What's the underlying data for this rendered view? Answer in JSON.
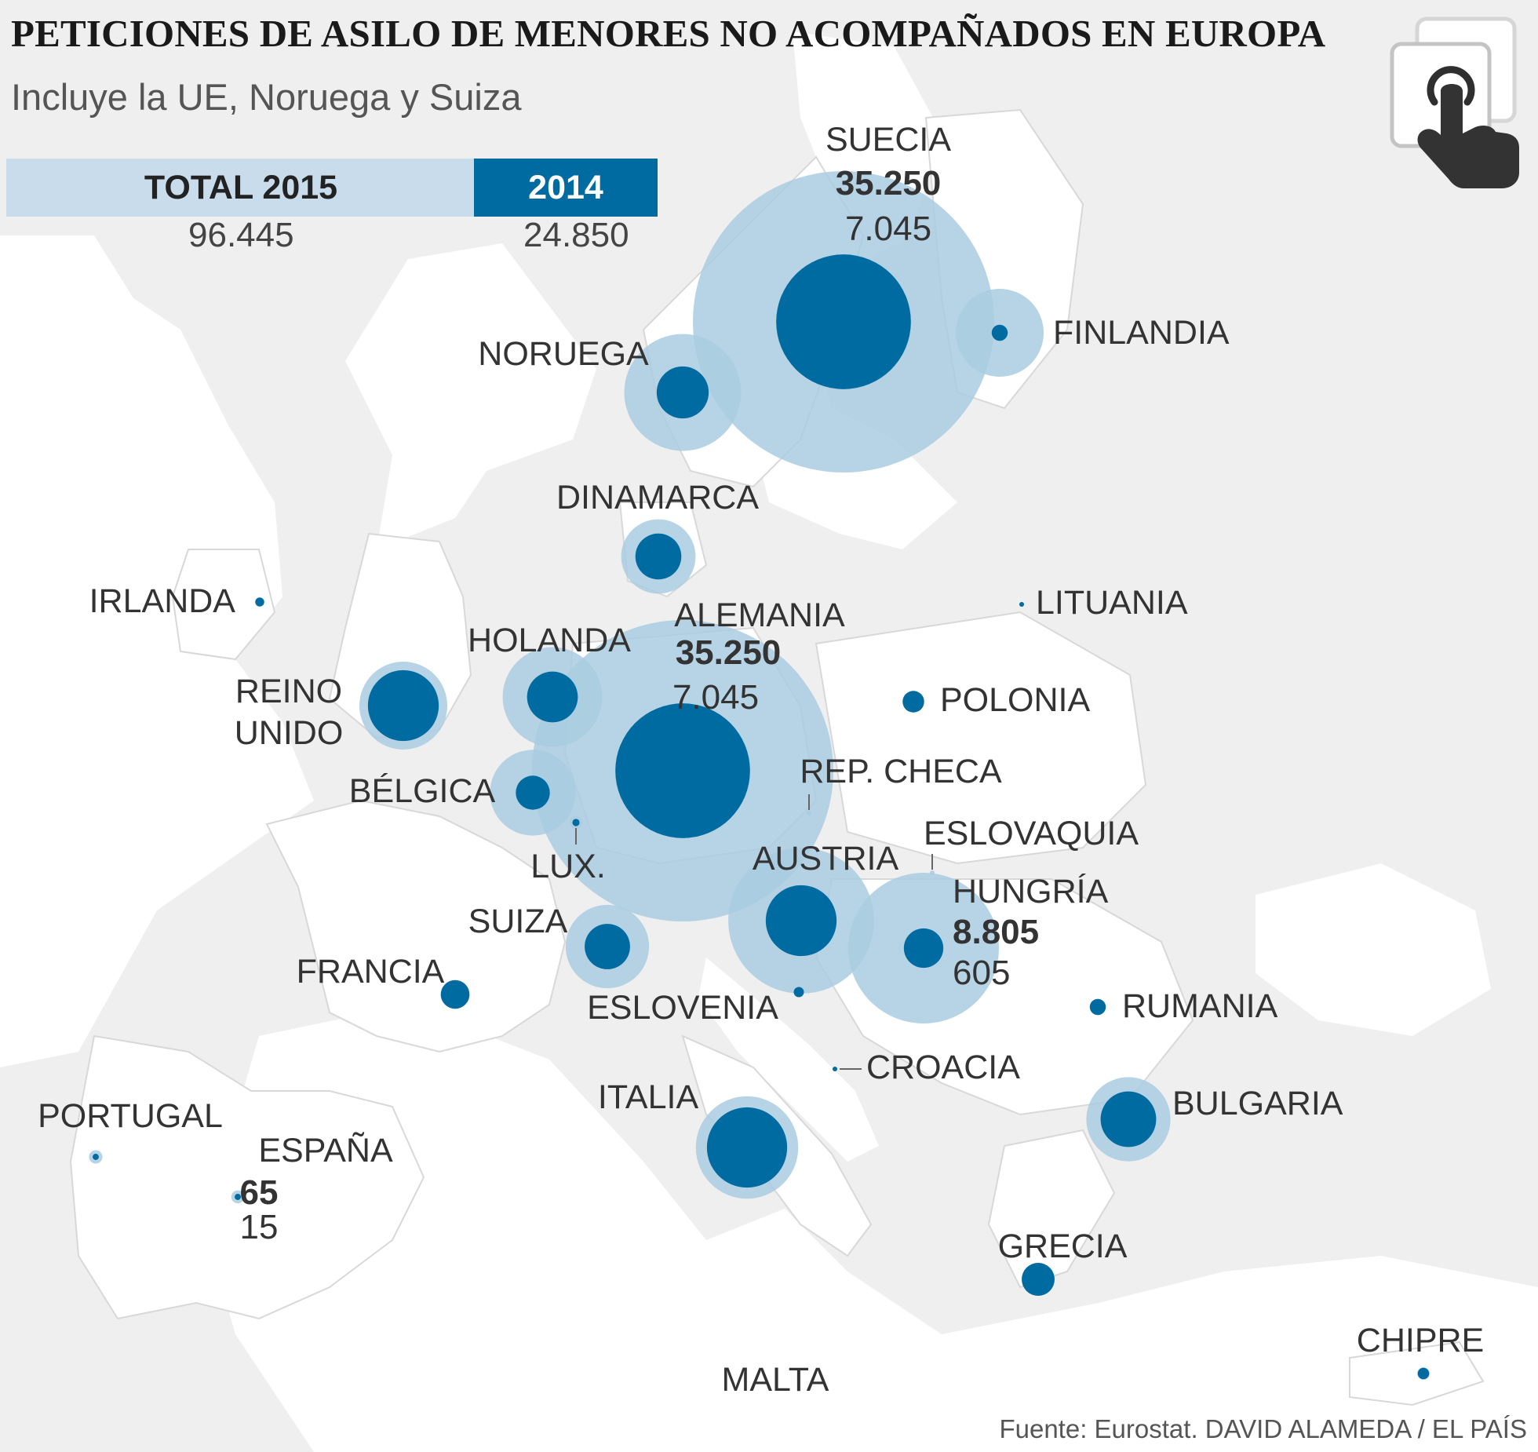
{
  "title": "PETICIONES DE ASILO DE MENORES NO ACOMPAÑADOS EN EUROPA",
  "subtitle": "Incluye la UE, Noruega y Suiza",
  "legend": {
    "total_label": "TOTAL 2015",
    "total_value": "96.445",
    "y2014_label": "2014",
    "y2014_value": "24.850"
  },
  "source": "Fuente: Eurostat. DAVID ALAMEDA / EL PAÍS",
  "icons": {
    "tap": "tap-hand-icon"
  },
  "colors": {
    "value_2015": "#a9cde0",
    "value_2014": "#006ba1",
    "land": "#ffffff",
    "background_land": "#efefef",
    "sea": "#ffffff",
    "label": "#333333"
  },
  "countries": [
    {
      "name": "SUECIA",
      "v2015": 35250,
      "v2014": 7045,
      "show2015": "35.250",
      "show2014": "7.045"
    },
    {
      "name": "FINLANDIA",
      "v2015": 3000,
      "v2014": 100
    },
    {
      "name": "NORUEGA",
      "v2015": 5300,
      "v2014": 1050
    },
    {
      "name": "DINAMARCA",
      "v2015": 2150,
      "v2014": 820
    },
    {
      "name": "IRLANDA",
      "v2015": 35,
      "v2014": 30
    },
    {
      "name": "LITUANIA",
      "v2015": 5,
      "v2014": 3
    },
    {
      "name": "ALEMANIA",
      "v2015": 35250,
      "v2014": 7045,
      "show2015": "35.250",
      "show2014": "7.045"
    },
    {
      "name": "HOLANDA",
      "v2015": 3850,
      "v2014": 1000
    },
    {
      "name": "REINO UNIDO",
      "v2015": 3000,
      "v2014": 1950
    },
    {
      "name": "POLONIA",
      "v2015": 180,
      "v2014": 180
    },
    {
      "name": "BÉLGICA",
      "v2015": 2850,
      "v2014": 450
    },
    {
      "name": "LUX.",
      "v2015": 60,
      "v2014": 20
    },
    {
      "name": "REP. CHECA",
      "v2015": 10,
      "v2014": 0
    },
    {
      "name": "ESLOVAQUIA",
      "v2015": 5,
      "v2014": 0
    },
    {
      "name": "AUSTRIA",
      "v2015": 8250,
      "v2014": 1950
    },
    {
      "name": "HUNGRÍA",
      "v2015": 8805,
      "v2014": 605,
      "show2015": "8.805",
      "show2014": "605"
    },
    {
      "name": "SUIZA",
      "v2015": 2700,
      "v2014": 800
    },
    {
      "name": "FRANCIA",
      "v2015": 320,
      "v2014": 320
    },
    {
      "name": "ESLOVENIA",
      "v2015": 40,
      "v2014": 40
    },
    {
      "name": "RUMANIA",
      "v2015": 100,
      "v2014": 100
    },
    {
      "name": "CROACIA",
      "v2015": 5,
      "v2014": 5
    },
    {
      "name": "ITALIA",
      "v2015": 4070,
      "v2014": 2500
    },
    {
      "name": "BULGARIA",
      "v2015": 2750,
      "v2014": 1200
    },
    {
      "name": "PORTUGAL",
      "v2015": 70,
      "v2014": 15
    },
    {
      "name": "ESPAÑA",
      "v2015": 65,
      "v2014": 15,
      "show2015": "65",
      "show2014": "15"
    },
    {
      "name": "GRECIA",
      "v2015": 420,
      "v2014": 420
    },
    {
      "name": "CHIPRE",
      "v2015": 60,
      "v2014": 50
    },
    {
      "name": "MALTA",
      "v2015": 0,
      "v2014": 0
    }
  ]
}
